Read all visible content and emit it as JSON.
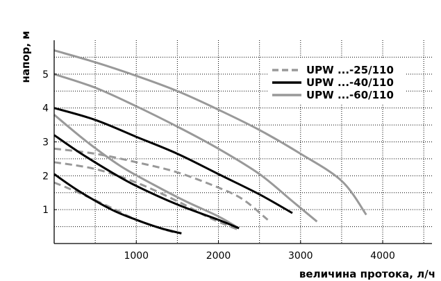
{
  "chart_data": {
    "type": "line",
    "xlabel": "величина протока, л/ч",
    "ylabel": "напор, м",
    "xlim": [
      0,
      4600
    ],
    "ylim": [
      0,
      6
    ],
    "x_ticks": [
      1000,
      2000,
      3000,
      4000
    ],
    "y_ticks": [
      1,
      2,
      3,
      4,
      5
    ],
    "x_tick_labels": [
      "1000",
      "2000",
      "3000",
      "4000"
    ],
    "y_tick_labels": [
      "1",
      "2",
      "3",
      "4",
      "5"
    ],
    "grid": true,
    "grid_style": "dotted",
    "legend_position": "top-right",
    "legend": [
      {
        "name": "UPW ...-25/110",
        "color": "#999999",
        "dash": "dashed"
      },
      {
        "name": "UPW ...-40/110",
        "color": "#000000",
        "dash": "solid"
      },
      {
        "name": "UPW ...-60/110",
        "color": "#999999",
        "dash": "solid"
      }
    ],
    "series": [
      {
        "legend": 0,
        "speed": 3,
        "points": [
          [
            0,
            2.8
          ],
          [
            500,
            2.65
          ],
          [
            1000,
            2.4
          ],
          [
            1500,
            2.1
          ],
          [
            2000,
            1.65
          ],
          [
            2300,
            1.3
          ],
          [
            2600,
            0.7
          ]
        ]
      },
      {
        "legend": 0,
        "speed": 2,
        "points": [
          [
            0,
            2.4
          ],
          [
            500,
            2.2
          ],
          [
            1000,
            1.8
          ],
          [
            1500,
            1.25
          ],
          [
            1900,
            0.75
          ],
          [
            2250,
            0.4
          ]
        ]
      },
      {
        "legend": 0,
        "speed": 1,
        "points": [
          [
            0,
            1.8
          ],
          [
            300,
            1.5
          ],
          [
            700,
            1.05
          ],
          [
            1000,
            0.7
          ],
          [
            1300,
            0.45
          ],
          [
            1500,
            0.3
          ]
        ]
      },
      {
        "legend": 1,
        "speed": 3,
        "points": [
          [
            0,
            4.0
          ],
          [
            500,
            3.65
          ],
          [
            1000,
            3.15
          ],
          [
            1500,
            2.65
          ],
          [
            2000,
            2.05
          ],
          [
            2500,
            1.45
          ],
          [
            2900,
            0.9
          ]
        ]
      },
      {
        "legend": 1,
        "speed": 2,
        "points": [
          [
            0,
            3.2
          ],
          [
            300,
            2.7
          ],
          [
            700,
            2.1
          ],
          [
            1000,
            1.7
          ],
          [
            1500,
            1.15
          ],
          [
            2000,
            0.7
          ],
          [
            2250,
            0.45
          ]
        ]
      },
      {
        "legend": 1,
        "speed": 1,
        "points": [
          [
            0,
            2.05
          ],
          [
            300,
            1.55
          ],
          [
            700,
            1.0
          ],
          [
            1000,
            0.7
          ],
          [
            1300,
            0.45
          ],
          [
            1550,
            0.3
          ]
        ]
      },
      {
        "legend": 2,
        "speed": 3,
        "points": [
          [
            0,
            5.7
          ],
          [
            500,
            5.35
          ],
          [
            1000,
            4.95
          ],
          [
            1500,
            4.5
          ],
          [
            2000,
            3.95
          ],
          [
            2500,
            3.35
          ],
          [
            3000,
            2.65
          ],
          [
            3500,
            1.85
          ],
          [
            3800,
            0.85
          ]
        ]
      },
      {
        "legend": 2,
        "speed": 2,
        "points": [
          [
            0,
            5.0
          ],
          [
            500,
            4.6
          ],
          [
            1000,
            4.05
          ],
          [
            1500,
            3.45
          ],
          [
            2000,
            2.8
          ],
          [
            2500,
            2.05
          ],
          [
            2900,
            1.25
          ],
          [
            3200,
            0.65
          ]
        ]
      },
      {
        "legend": 2,
        "speed": 1,
        "points": [
          [
            0,
            3.8
          ],
          [
            400,
            3.0
          ],
          [
            800,
            2.3
          ],
          [
            1200,
            1.75
          ],
          [
            1600,
            1.25
          ],
          [
            2000,
            0.8
          ],
          [
            2250,
            0.45
          ]
        ]
      }
    ]
  }
}
